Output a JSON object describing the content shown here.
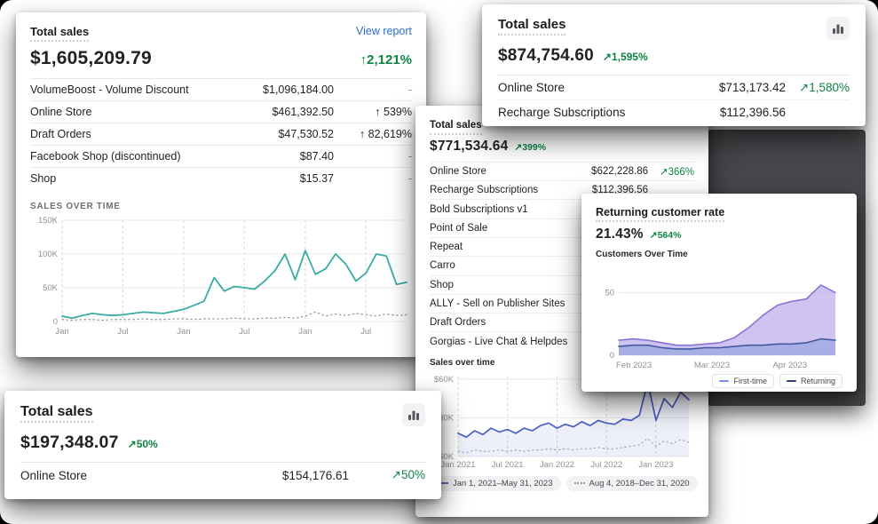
{
  "colors": {
    "positive_green": "#0e8345",
    "link_blue": "#2c6ecb",
    "teal_line": "#3aaba3",
    "indigo_line": "#4c5fc8",
    "purple_area": "#8a72d6",
    "muted_text": "#8c9196",
    "backdrop_gray": "#47474b"
  },
  "cards": {
    "sales_large": {
      "title": "Total sales",
      "link": "View report",
      "amount": "$1,605,209.79",
      "change": "↑2,121%",
      "rows": [
        {
          "name": "VolumeBoost - Volume Discount",
          "value": "$1,096,184.00",
          "change": "-",
          "change_color": "#8c9196"
        },
        {
          "name": "Online Store",
          "value": "$461,392.50",
          "change": "↑ 539%",
          "change_color": "#202223"
        },
        {
          "name": "Draft Orders",
          "value": "$47,530.52",
          "change": "↑ 82,619%",
          "change_color": "#202223"
        },
        {
          "name": "Facebook Shop (discontinued)",
          "value": "$87.40",
          "change": "-",
          "change_color": "#8c9196"
        },
        {
          "name": "Shop",
          "value": "$15.37",
          "change": "-",
          "change_color": "#8c9196"
        }
      ],
      "section_label": "SALES OVER TIME"
    },
    "sales_right": {
      "title": "Total sales",
      "icon": "bar-chart-icon",
      "amount": "$874,754.60",
      "change": "↗1,595%",
      "rows": [
        {
          "name": "Online Store",
          "value": "$713,173.42",
          "change": "↗1,580%",
          "change_color": "#0e8345"
        },
        {
          "name": "Recharge Subscriptions",
          "value": "$112,396.56",
          "change": "",
          "change_color": "#0e8345"
        }
      ]
    },
    "sales_center": {
      "title": "Total sales",
      "amount": "$771,534.64",
      "change": "↗399%",
      "rows": [
        {
          "name": "Online Store",
          "value": "$622,228.86",
          "change": "↗366%",
          "change_color": "#0e8345"
        },
        {
          "name": "Recharge Subscriptions",
          "value": "$112,396.56",
          "change": ""
        },
        {
          "name": "Bold Subscriptions v1"
        },
        {
          "name": "Point of Sale"
        },
        {
          "name": "Repeat"
        },
        {
          "name": "Carro"
        },
        {
          "name": "Shop"
        },
        {
          "name": "ALLY - Sell on Publisher Sites"
        },
        {
          "name": "Draft Orders"
        },
        {
          "name": "Gorgias - Live Chat & Helpdesk"
        }
      ],
      "section_label": "Sales over time",
      "legend": [
        "Jan 1, 2021–May 31, 2023",
        "Aug 4, 2018–Dec 31, 2020"
      ]
    },
    "returning_rate": {
      "title": "Returning customer rate",
      "amount": "21.43%",
      "change": "↗564%",
      "section_label": "Customers Over Time",
      "legend": [
        "First-time",
        "Returning"
      ]
    },
    "sales_small": {
      "title": "Total sales",
      "icon": "bar-chart-icon",
      "amount": "$197,348.07",
      "change": "↗50%",
      "rows": [
        {
          "name": "Online Store",
          "value": "$154,176.61",
          "change": "↗50%",
          "change_color": "#0e8345"
        }
      ]
    }
  },
  "chart_data": [
    {
      "id": "chart-sales-large",
      "type": "line",
      "title": "SALES OVER TIME",
      "ylim": [
        0,
        150
      ],
      "vgrid": true,
      "margins": {
        "l": 36,
        "r": 6,
        "t": 6,
        "b": 18
      },
      "yticks": [
        {
          "v": 150,
          "label": "150K"
        },
        {
          "v": 100,
          "label": "100K"
        },
        {
          "v": 50,
          "label": "50K"
        },
        {
          "v": 0,
          "label": "0"
        }
      ],
      "xticks": [
        {
          "pos": 0.0,
          "label": "Jan"
        },
        {
          "pos": 0.176,
          "label": "Jul"
        },
        {
          "pos": 0.353,
          "label": "Jan"
        },
        {
          "pos": 0.529,
          "label": "Jul"
        },
        {
          "pos": 0.706,
          "label": "Jan"
        },
        {
          "pos": 0.882,
          "label": "Jul"
        }
      ],
      "series": [
        {
          "name": "current",
          "color": "#3aaba3",
          "width": 1.8,
          "values": [
            8,
            5,
            9,
            12,
            10,
            9,
            10,
            12,
            14,
            13,
            12,
            15,
            18,
            24,
            30,
            65,
            45,
            52,
            50,
            48,
            60,
            75,
            100,
            62,
            105,
            70,
            78,
            100,
            85,
            60,
            72,
            100,
            97,
            55,
            58
          ]
        },
        {
          "name": "previous",
          "color": "#9aa0a6",
          "width": 1.3,
          "dash": "1.5 3.5",
          "values": [
            3,
            2,
            3,
            3,
            2,
            3,
            3,
            3,
            4,
            3,
            3,
            4,
            4,
            3,
            4,
            4,
            4,
            5,
            4,
            4,
            5,
            5,
            6,
            5,
            8,
            14,
            8,
            11,
            9,
            12,
            10,
            8,
            11,
            9,
            10
          ]
        }
      ]
    },
    {
      "id": "chart-sales-center",
      "type": "line",
      "title": "Sales over time",
      "ylim": [
        0,
        62
      ],
      "vgrid": true,
      "margins": {
        "l": 32,
        "r": 6,
        "t": 6,
        "b": 16
      },
      "yticks": [
        {
          "v": 60,
          "label": "$60K"
        },
        {
          "v": 30,
          "label": "$30K"
        },
        {
          "v": 0,
          "label": "$0K"
        }
      ],
      "xticks": [
        {
          "pos": 0.0,
          "label": "Jan 2021"
        },
        {
          "pos": 0.214,
          "label": "Jul 2021"
        },
        {
          "pos": 0.429,
          "label": "Jan 2022"
        },
        {
          "pos": 0.643,
          "label": "Jul 2022"
        },
        {
          "pos": 0.857,
          "label": "Jan 2023"
        }
      ],
      "series": [
        {
          "name": "Jan 1, 2021–May 31, 2023",
          "color": "#4c5fc8",
          "width": 1.7,
          "fill": "rgba(92,106,196,0.10)",
          "values": [
            18,
            15,
            20,
            17,
            22,
            19,
            21,
            18,
            22,
            20,
            24,
            26,
            22,
            25,
            23,
            27,
            24,
            28,
            26,
            25,
            29,
            28,
            32,
            58,
            28,
            45,
            38,
            50,
            44
          ]
        },
        {
          "name": "Aug 4, 2018–Dec 31, 2020",
          "color": "#a3a8bd",
          "width": 1.2,
          "dash": "1.5 3.5",
          "values": [
            4,
            3,
            5,
            4,
            4,
            5,
            4,
            5,
            4,
            5,
            5,
            6,
            5,
            6,
            5,
            6,
            6,
            7,
            6,
            6,
            7,
            8,
            9,
            14,
            8,
            12,
            10,
            13,
            11
          ]
        }
      ]
    },
    {
      "id": "chart-customers",
      "type": "area",
      "title": "Customers Over Time",
      "ylim": [
        0,
        68
      ],
      "vgrid": false,
      "margins": {
        "l": 26,
        "r": 8,
        "t": 8,
        "b": 18
      },
      "yticks": [
        {
          "v": 50,
          "label": "50"
        },
        {
          "v": 0,
          "label": "0"
        }
      ],
      "xticks": [
        {
          "pos": 0.07,
          "label": "Feb 2023"
        },
        {
          "pos": 0.43,
          "label": "Mar 2023"
        },
        {
          "pos": 0.79,
          "label": "Apr 2023"
        }
      ],
      "series": [
        {
          "name": "First-time",
          "color": "#8a72d6",
          "width": 1.6,
          "fill": "rgba(167,148,230,0.55)",
          "values": [
            12,
            13,
            12,
            10,
            8,
            8,
            9,
            10,
            14,
            22,
            32,
            40,
            43,
            45,
            56,
            50
          ]
        },
        {
          "name": "Returning",
          "color": "#44579f",
          "width": 1.6,
          "fill": "rgba(147,165,222,0.65)",
          "values": [
            7,
            8,
            8,
            6,
            5,
            5,
            6,
            6,
            7,
            8,
            8,
            9,
            9,
            10,
            13,
            12
          ]
        }
      ]
    }
  ]
}
